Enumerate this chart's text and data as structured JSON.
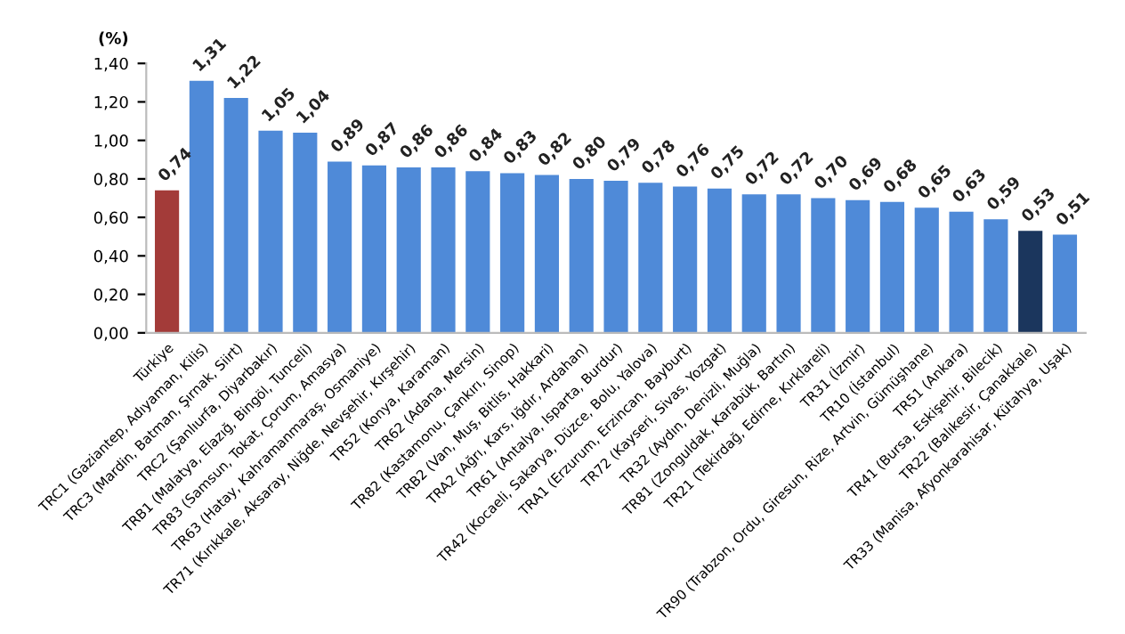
{
  "chart_data": {
    "type": "bar",
    "ylabel": "(%)",
    "categories": [
      "Türkiye",
      "TRC1 (Gaziantep, Adıyaman, Kilis)",
      "TRC3 (Mardin, Batman, Şırnak, Siirt)",
      "TRC2 (Şanlıurfa, Diyarbakır)",
      "TRB1 (Malatya, Elazığ, Bingöl, Tunceli)",
      "TR83 (Samsun, Tokat, Çorum, Amasya)",
      "TR63 (Hatay, Kahramanmaraş, Osmaniye)",
      "TR71 (Kırıkkale, Aksaray, Niğde, Nevşehir, Kırşehir)",
      "TR52 (Konya, Karaman)",
      "TR62 (Adana, Mersin)",
      "TR82 (Kastamonu, Çankırı, Sinop)",
      "TRB2 (Van, Muş, Bitlis, Hakkari)",
      "TRA2 (Ağrı, Kars, Iğdır, Ardahan)",
      "TR61 (Antalya, Isparta, Burdur)",
      "TR42 (Kocaeli, Sakarya, Düzce, Bolu, Yalova)",
      "TRA1 (Erzurum, Erzincan, Bayburt)",
      "TR72 (Kayseri, Sivas, Yozgat)",
      "TR32 (Aydın, Denizli, Muğla)",
      "TR81 (Zonguldak, Karabük, Bartın)",
      "TR21 (Tekirdağ, Edirne, Kırklareli)",
      "TR31 (İzmir)",
      "TR10 (İstanbul)",
      "TR90 (Trabzon, Ordu, Giresun, Rize, Artvin, Gümüşhane)",
      "TR51 (Ankara)",
      "TR41 (Bursa, Eskişehir, Bilecik)",
      "TR22 (Balıkesir, Çanakkale)",
      "TR33 (Manisa, Afyonkarahisar, Kütahya, Uşak)"
    ],
    "values": [
      0.74,
      1.31,
      1.22,
      1.05,
      1.04,
      0.89,
      0.87,
      0.86,
      0.86,
      0.84,
      0.83,
      0.82,
      0.8,
      0.79,
      0.78,
      0.76,
      0.75,
      0.72,
      0.72,
      0.7,
      0.69,
      0.68,
      0.65,
      0.63,
      0.59,
      0.53,
      0.51
    ],
    "value_labels": [
      "0,74",
      "1,31",
      "1,22",
      "1,05",
      "1,04",
      "0,89",
      "0,87",
      "0,86",
      "0,86",
      "0,84",
      "0,83",
      "0,82",
      "0,80",
      "0,79",
      "0,78",
      "0,76",
      "0,75",
      "0,72",
      "0,72",
      "0,70",
      "0,69",
      "0,68",
      "0,65",
      "0,63",
      "0,59",
      "0,53",
      "0,51"
    ],
    "colors": [
      "#a33b39",
      "#4f8ad8",
      "#4f8ad8",
      "#4f8ad8",
      "#4f8ad8",
      "#4f8ad8",
      "#4f8ad8",
      "#4f8ad8",
      "#4f8ad8",
      "#4f8ad8",
      "#4f8ad8",
      "#4f8ad8",
      "#4f8ad8",
      "#4f8ad8",
      "#4f8ad8",
      "#4f8ad8",
      "#4f8ad8",
      "#4f8ad8",
      "#4f8ad8",
      "#4f8ad8",
      "#4f8ad8",
      "#4f8ad8",
      "#4f8ad8",
      "#4f8ad8",
      "#4f8ad8",
      "#1b365d",
      "#4f8ad8"
    ],
    "ylim": [
      0,
      1.4
    ],
    "yticks": [
      {
        "value": 0,
        "label": "0,00"
      },
      {
        "value": 0.2,
        "label": "0,20"
      },
      {
        "value": 0.4,
        "label": "0,40"
      },
      {
        "value": 0.6,
        "label": "0,60"
      },
      {
        "value": 0.8,
        "label": "0,80"
      },
      {
        "value": 1.0,
        "label": "1,00"
      },
      {
        "value": 1.2,
        "label": "1,20"
      },
      {
        "value": 1.4,
        "label": "1,40"
      }
    ],
    "grid": false,
    "legend": false
  }
}
